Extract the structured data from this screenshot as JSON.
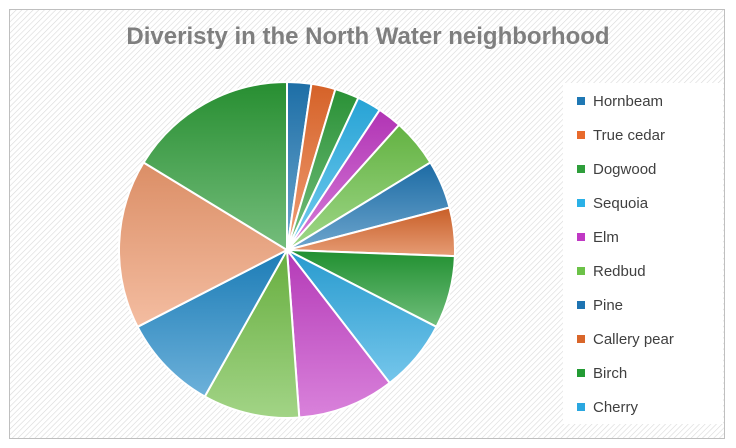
{
  "colors": {
    "background": "#ffffff",
    "hatch": "#d9d9d9",
    "title": "#7f7f7f",
    "legend_text": "#404040",
    "border": "#bfbfbf"
  },
  "chart_data": {
    "type": "pie",
    "title": "Diveristy in the North Water neighborhood",
    "legend_position": "right",
    "legend": [
      "Hornbeam",
      "True cedar",
      "Dogwood",
      "Sequoia",
      "Elm",
      "Redbud",
      "Pine",
      "Callery pear",
      "Birch",
      "Cherry"
    ],
    "series": [
      {
        "categories": [
          "Hornbeam",
          "True cedar",
          "Dogwood",
          "Sequoia",
          "Elm",
          "Redbud",
          "Pine",
          "Callery pear",
          "Birch",
          "Cherry",
          "Hornbeam",
          "True cedar",
          "Dogwood",
          "Sequoia",
          "Elm",
          "Redbud",
          "Pine",
          "Callery pear",
          "Birch",
          "Cherry"
        ],
        "values": [
          2.5,
          2.5,
          2.5,
          2.5,
          2.5,
          5,
          5,
          5,
          7.5,
          7.5,
          10,
          10,
          10,
          17.5,
          17.5,
          0,
          0,
          0,
          0,
          0
        ],
        "colors": [
          "#1f78b4",
          "#e86a2c",
          "#2e9e3b",
          "#2ab1e7",
          "#c038c4",
          "#6cc248",
          "#1e74b2",
          "#d9662a",
          "#239b34",
          "#2aa7e0",
          "#c43fc7",
          "#70bd45",
          "#1e87c6",
          "#ee9a6f",
          "#2a9a35",
          "#2ab1e7",
          "#c038c4",
          "#6cc248",
          "#1e74b2",
          "#d9662a"
        ]
      }
    ]
  }
}
